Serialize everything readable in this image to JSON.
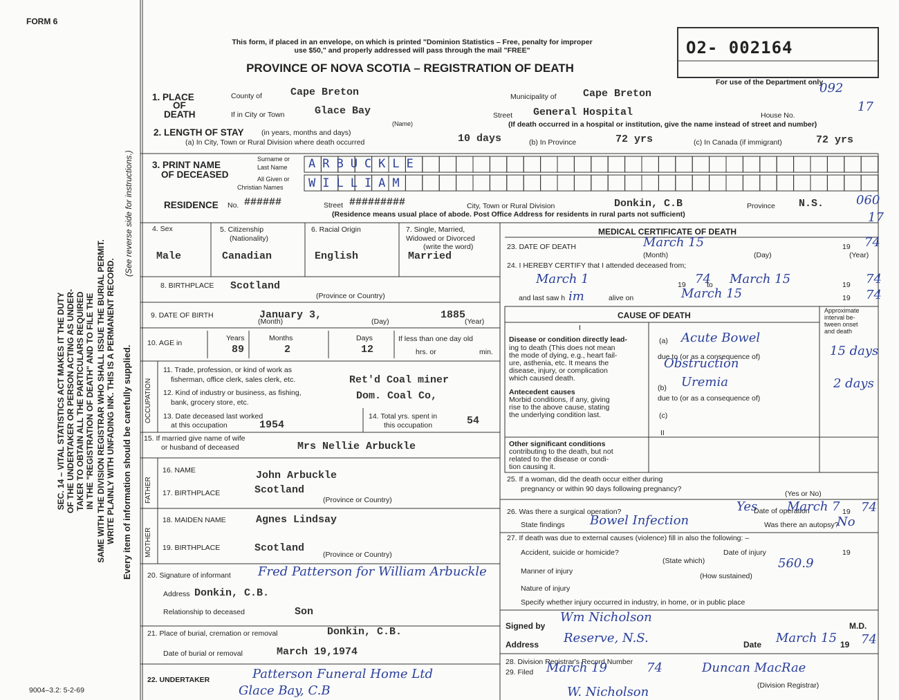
{
  "header": {
    "form": "FORM 6",
    "notice": [
      "This form, if placed in an envelope, on which is printed \"Dominion Statistics – Free, penalty for improper",
      "use $50,\" and properly addressed will pass through the mail \"FREE\""
    ],
    "title": "PROVINCE OF NOVA SCOTIA – REGISTRATION OF DEATH",
    "registration_number": "O2- 002164",
    "department_note": "For use of the Department only"
  },
  "margin": {
    "statute": [
      "SEC. 14 – VITAL STATISTICS ACT MAKES IT THE DUTY",
      "OF THE UNDERTAKER OR PERSON ACTING AS UNDER-",
      "TAKER TO OBTAIN ALL THE PARTICULARS REQUIRED",
      "IN THE \"REGISTRATION OF DEATH\" AND TO FILE THE",
      "SAME WITH THE DIVISION REGISTRAR WHO SHALL ISSUE THE BURIAL PERMIT.",
      "WRITE PLAINLY WITH UNFADING INK. THIS IS A PERMANENT RECORD."
    ],
    "supply_note": "Every item of information should be carefully supplied.",
    "reverse_note": "(See reverse side for instructions.)",
    "form_code": "9004–3.2: 5-2-69",
    "codes": [
      "092",
      "17",
      "060",
      "17"
    ]
  },
  "place": {
    "label": [
      "1. PLACE",
      "OF",
      "DEATH"
    ],
    "county_label": "County of",
    "county": "Cape Breton",
    "municipality_label": "Municipality of",
    "municipality": "Cape Breton",
    "city_label": "If in City or Town",
    "city": "Glace Bay",
    "name_caption": "(Name)",
    "street_label": "Street",
    "street": "General Hospital",
    "house_label": "House No.",
    "note": "(If death occurred in a hospital or institution, give the name instead of street and number)"
  },
  "stay": {
    "label": "2. LENGTH OF STAY",
    "label_note": "(in years, months and days)",
    "city_label": "(a) In City, Town or Rural Division where death occurred",
    "city": "10 days",
    "province_label": "(b) In Province",
    "province": "72 yrs",
    "canada_label": "(c) In Canada (if immigrant)",
    "canada": "72 yrs"
  },
  "name": {
    "label": [
      "3. PRINT NAME",
      "OF DECEASED"
    ],
    "surname_label": [
      "Surname or",
      "Last Name"
    ],
    "given_label": [
      "All Given or",
      "Christian Names"
    ],
    "surname": "ARBUCKLE",
    "given": "WILLIAM"
  },
  "residence": {
    "label": "RESIDENCE",
    "no_label": "No.",
    "no": "######",
    "street_label": "Street",
    "street": "#########",
    "city_label": "City, Town or Rural Division",
    "city": "Donkin, C.B",
    "province_label": "Province",
    "province": "N.S.",
    "note": "(Residence means usual place of abode. Post Office Address for residents in rural parts not sufficient)"
  },
  "personal": {
    "sex_label": "4. Sex",
    "sex": "Male",
    "citizenship_label": [
      "5. Citizenship",
      "(Nationality)"
    ],
    "citizenship": "Canadian",
    "origin_label": "6. Racial Origin",
    "origin": "English",
    "marital_label": [
      "7. Single, Married,",
      "Widowed or Divorced",
      "(write the word)"
    ],
    "marital": "Married",
    "birthplace_label": "8. BIRTHPLACE",
    "birthplace": "Scotland",
    "birthplace_caption": "(Province or Country)",
    "dob_label": "9. DATE OF BIRTH",
    "dob_month_day": "January 3,",
    "dob_year": "1885",
    "dob_captions": [
      "(Month)",
      "(Day)",
      "(Year)"
    ],
    "age_label": "10. AGE in",
    "age_captions": [
      "Years",
      "Months",
      "Days"
    ],
    "age": [
      "89",
      "2",
      "12"
    ],
    "infant_label": [
      "If less than one day old",
      "hrs. or",
      "min."
    ]
  },
  "occupation": {
    "side_label": "OCCUPATION",
    "trade_label": [
      "11. Trade, profession, or kind of work as",
      "fisherman, office clerk, sales clerk, etc."
    ],
    "trade": "Ret'd Coal miner",
    "industry_label": [
      "12. Kind of industry or business, as fishing,",
      "bank, grocery store, etc."
    ],
    "industry": "Dom. Coal Co,",
    "last_worked_label": [
      "13. Date deceased last worked",
      "at this occupation"
    ],
    "last_worked": "1954",
    "years_label": [
      "14. Total yrs. spent in",
      "this occupation"
    ],
    "years": "54"
  },
  "spouse": {
    "label": [
      "15. If married give name of wife",
      "or husband of deceased"
    ],
    "name": "Mrs Nellie Arbuckle"
  },
  "father": {
    "side_label": "FATHER",
    "name_label": "16. NAME",
    "name": "John Arbuckle",
    "birthplace_label": "17. BIRTHPLACE",
    "birthplace": "Scotland",
    "birthplace_caption": "(Province or Country)"
  },
  "mother": {
    "side_label": "MOTHER",
    "name_label": "18. MAIDEN NAME",
    "name": "Agnes Lindsay",
    "birthplace_label": "19. BIRTHPLACE",
    "birthplace": "Scotland",
    "birthplace_caption": "(Province or Country)"
  },
  "informant": {
    "signature_label": "20. Signature of informant",
    "signature": "Fred Patterson for William Arbuckle",
    "address_label": "Address",
    "address": "Donkin, C.B.",
    "relationship_label": "Relationship to deceased",
    "relationship": "Son"
  },
  "burial": {
    "place_label": "21. Place of burial, cremation or removal",
    "place": "Donkin, C.B.",
    "date_label": "Date of burial or removal",
    "date": "March 19,1974"
  },
  "undertaker": {
    "label": "22. UNDERTAKER",
    "name": [
      "Patterson Funeral Home Ltd",
      "Glace Bay, C.B"
    ]
  },
  "medical": {
    "title": "MEDICAL CERTIFICATE OF DEATH",
    "death_date_label": "23. DATE OF DEATH",
    "death_date": "March 15",
    "year_prefix": "19",
    "death_year": "74",
    "death_captions": [
      "(Month)",
      "(Day)",
      "(Year)"
    ],
    "certify_label": "24. I HEREBY CERTIFY that I attended deceased from;",
    "from": "March 1",
    "from_prefix": "19",
    "from_year": "74",
    "to_label": "to",
    "to": "March 15",
    "to_prefix": "19",
    "to_year": "74",
    "last_saw_label": "and last saw h",
    "last_saw_pronoun": "im",
    "alive_label": "alive on",
    "last_saw": "March 15",
    "last_saw_prefix": "19",
    "last_saw_year": "74"
  },
  "cause": {
    "title": "CAUSE OF DEATH",
    "interval_label": [
      "Approximate",
      "interval be-",
      "tween onset",
      "and death"
    ],
    "part1": "I",
    "direct_label": [
      "Disease or condition directly lead-",
      "ing to death (This does not mean",
      "the mode of dying, e.g., heart fail-",
      "ure, asthenia, etc. It means the",
      "disease, injury, or complication",
      "which caused death."
    ],
    "a_label": "(a)",
    "a": "Acute Bowel",
    "due_to": "due to (or as a consequence of)",
    "a2": "Obstruction",
    "a_interval": "15 days",
    "antecedent_label": [
      "Antecedent causes",
      "Morbid conditions, if any, giving",
      "rise to the above cause, stating",
      "the underlying condition last."
    ],
    "b_label": "(b)",
    "b": "Uremia",
    "b_interval": "2 days",
    "due_to_b": "due to (or as a consequence of)",
    "c_label": "(c)",
    "part2": "II",
    "other_label": [
      "Other significant conditions",
      "contributing to the death, but not",
      "related to the disease or condi-",
      "tion causing it."
    ]
  },
  "pregnancy": {
    "label": [
      "25. If a woman, did the death occur either during",
      "pregnancy or within 90 days following pregnancy?"
    ],
    "caption": "(Yes or No)"
  },
  "operation": {
    "label": "26. Was there a surgical operation?",
    "value": "Yes",
    "date_label": "Date of operation",
    "date": "March 7",
    "year_prefix": "19",
    "year": "74",
    "findings_label": "State findings",
    "findings": "Bowel Infection",
    "autopsy_label": "Was there an autopsy?",
    "autopsy": "No"
  },
  "external": {
    "label": "27. If death was due to external causes (violence) fill in also the following: –",
    "accident_label": "Accident, suicide or homicide?",
    "injury_date_label": "Date of injury",
    "year_prefix": "19",
    "state_caption": "(State which)",
    "manner_label": "Manner of injury",
    "code": "560.9",
    "how_caption": "(How sustained)",
    "nature_label": "Nature of injury",
    "place_label": "Specify whether injury occurred in industry, in home, or in public place"
  },
  "signature": {
    "signed_label": "Signed by",
    "signed": "Wm Nicholson",
    "md": "M.D.",
    "address_label": "Address",
    "address": "Reserve, N.S.",
    "date_label": "Date",
    "date": "March 15",
    "year_prefix": "19",
    "year": "74"
  },
  "registrar": {
    "record_label": "28. Division Registrar's Record Number",
    "filed_label": "29. Filed",
    "filed": "March 19",
    "filed_year": "74",
    "name": "Duncan MacRae",
    "caption": "(Division Registrar)",
    "stamp": "W. Nicholson"
  }
}
